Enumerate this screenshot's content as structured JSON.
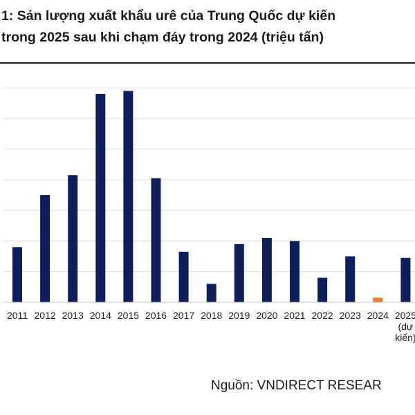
{
  "title": {
    "line1": "1: Sản lượng xuất khẩu urê của Trung Quốc dự kiến",
    "line2": "trong 2025 sau khi chạm đáy trong 2024 (triệu tấn)"
  },
  "source": "Nguồn: VNDIRECT RESEAR",
  "colors": {
    "bar": "#0f1f5c",
    "highlight": "#ed7d31",
    "grid": "#d9d9d9",
    "text": "#1a1a1a"
  },
  "chart_data": {
    "type": "bar",
    "categories": [
      "2011",
      "2012",
      "2013",
      "2014",
      "2015",
      "2016",
      "2017",
      "2018",
      "2019",
      "2020",
      "2021",
      "2022",
      "2023",
      "2024",
      "2025\n(dự\nkiến)"
    ],
    "values": [
      1.8,
      3.5,
      4.15,
      6.8,
      6.9,
      4.05,
      1.65,
      0.6,
      1.9,
      2.1,
      2.0,
      0.8,
      1.5,
      0.15,
      1.45
    ],
    "highlight_index": 13,
    "ylim": [
      0,
      7
    ],
    "grid": true,
    "title": "",
    "xlabel": "",
    "ylabel": ""
  }
}
